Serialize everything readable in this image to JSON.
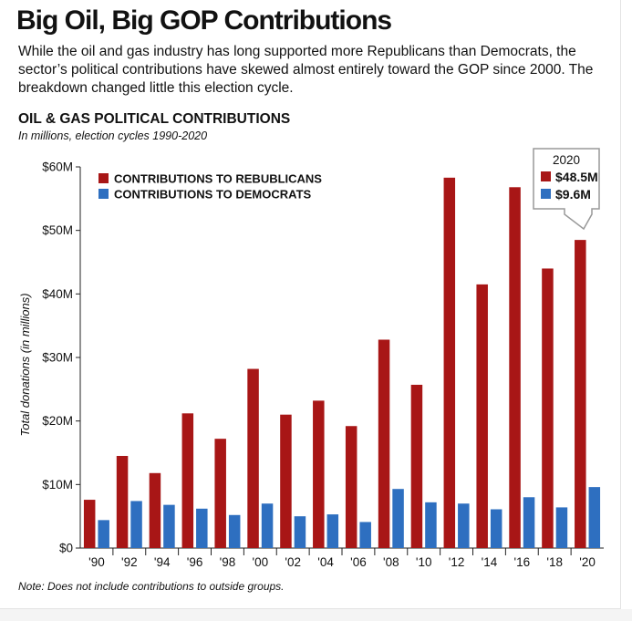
{
  "headline": "Big Oil, Big GOP Contributions",
  "lede": "While the oil and gas industry has long supported more Republicans than Democrats, the sector’s political contributions have skewed almost entirely toward the GOP since 2000. The breakdown changed little this election cycle.",
  "note": "Note: Does not include contributions to outside groups.",
  "colors": {
    "republican": "#a81616",
    "democrat": "#2e6fc0",
    "callout_border": "#999999"
  },
  "callout": {
    "year": "2020",
    "rep_value": "$48.5M",
    "dem_value": "$9.6M"
  },
  "chart_data": {
    "type": "bar",
    "title": "OIL & GAS POLITICAL CONTRIBUTIONS",
    "subtitle": "In millions, election cycles 1990-2020",
    "ylabel": "Total donations (in millions)",
    "xlabel": "",
    "categories": [
      "'90",
      "'92",
      "'94",
      "'96",
      "'98",
      "'00",
      "'02",
      "'04",
      "'06",
      "'08",
      "'10",
      "'12",
      "'14",
      "'16",
      "'18",
      "'20"
    ],
    "yticks": [
      0,
      10,
      20,
      30,
      40,
      50,
      60
    ],
    "ytick_labels": [
      "$0",
      "$10M",
      "$20M",
      "$30M",
      "$40M",
      "$50M",
      "$60M"
    ],
    "ylim": [
      0,
      60
    ],
    "grid": false,
    "legend_position": "top-left",
    "series": [
      {
        "name": "CONTRIBUTIONS TO REBUBLICANS",
        "values": [
          7.6,
          14.5,
          11.8,
          21.2,
          17.2,
          28.2,
          21.0,
          23.2,
          19.2,
          32.8,
          25.7,
          58.3,
          41.5,
          56.8,
          44.0,
          48.5
        ]
      },
      {
        "name": "CONTRIBUTIONS TO DEMOCRATS",
        "values": [
          4.4,
          7.4,
          6.8,
          6.2,
          5.2,
          7.0,
          5.0,
          5.3,
          4.1,
          9.3,
          7.2,
          7.0,
          6.1,
          8.0,
          6.4,
          9.6
        ]
      }
    ]
  }
}
